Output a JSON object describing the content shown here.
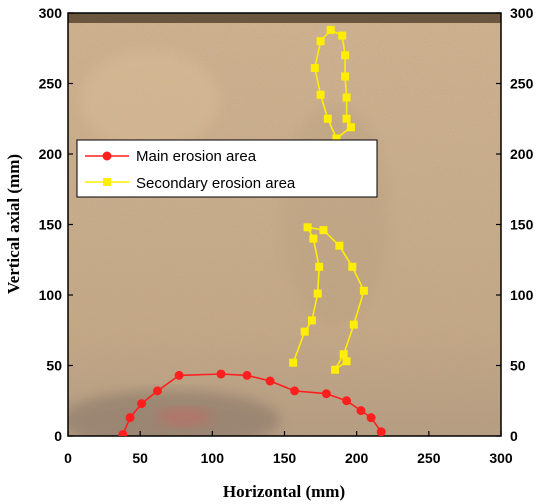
{
  "chart_data": {
    "type": "line",
    "xlabel": "Horizontal  (mm)",
    "ylabel": "Vertical axial (mm)",
    "xlim": [
      0,
      300
    ],
    "ylim": [
      0,
      300
    ],
    "x_ticks": [
      "0",
      "50",
      "100",
      "150",
      "200",
      "250",
      "300"
    ],
    "y_ticks": [
      "0",
      "50",
      "100",
      "150",
      "200",
      "250",
      "300"
    ],
    "grid": false,
    "legend_position": "left-upper",
    "series": [
      {
        "name": "Main erosion area",
        "color": "#ff1f1f",
        "marker": "circle",
        "points": [
          [
            38,
            1
          ],
          [
            43,
            13
          ],
          [
            51,
            23
          ],
          [
            62,
            32
          ],
          [
            77,
            43
          ],
          [
            106,
            44
          ],
          [
            124,
            43
          ],
          [
            140,
            39
          ],
          [
            157,
            32
          ],
          [
            179,
            30
          ],
          [
            193,
            25
          ],
          [
            203,
            18
          ],
          [
            210,
            13
          ],
          [
            217,
            3
          ]
        ]
      },
      {
        "name": "Secondary erosion area",
        "color": "#ffee00",
        "marker": "square",
        "segments": [
          [
            [
              186,
              211
            ],
            [
              180,
              225
            ],
            [
              175,
              242
            ],
            [
              171,
              261
            ],
            [
              175,
              280
            ],
            [
              182,
              288
            ],
            [
              190,
              284
            ],
            [
              192,
              270
            ],
            [
              192,
              255
            ],
            [
              193,
              240
            ],
            [
              193,
              225
            ],
            [
              196,
              219
            ],
            [
              186,
              211
            ]
          ],
          [
            [
              156,
              52
            ],
            [
              164,
              74
            ],
            [
              169,
              82
            ],
            [
              173,
              101
            ],
            [
              174,
              120
            ],
            [
              170,
              140
            ],
            [
              166,
              148
            ],
            [
              177,
              146
            ],
            [
              188,
              135
            ],
            [
              197,
              120
            ],
            [
              205,
              103
            ],
            [
              198,
              79
            ],
            [
              191,
              58
            ],
            [
              185,
              47
            ],
            [
              193,
              53
            ]
          ]
        ]
      }
    ]
  }
}
